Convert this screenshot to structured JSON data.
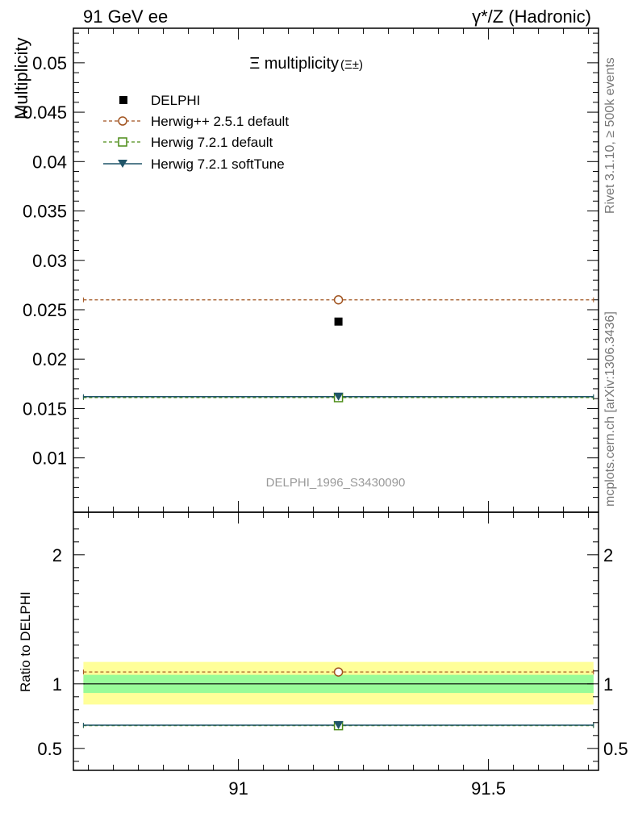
{
  "header": {
    "left": "91 GeV ee",
    "right": "γ*/Z (Hadronic)"
  },
  "side_text": {
    "rivet": "Rivet 3.1.10, ≥ 500k events",
    "mcplots": "mcplots.cern.ch [arXiv:1306.3436]"
  },
  "chart_data": [
    {
      "type": "scatter",
      "title": "Ξ multiplicity",
      "title_suffix": "(Ξ±)",
      "ylabel": "Multiplicity",
      "watermark": "DELPHI_1996_S3430090",
      "xlim": [
        90.67,
        91.72
      ],
      "ylim": [
        0.0045,
        0.0535
      ],
      "yticks": [
        0.01,
        0.015,
        0.02,
        0.025,
        0.03,
        0.035,
        0.04,
        0.045,
        0.05
      ],
      "ytick_labels": [
        "0.01",
        "0.015",
        "0.02",
        "0.025",
        "0.03",
        "0.035",
        "0.04",
        "0.045",
        "0.05"
      ],
      "x_range": [
        90.69,
        91.71
      ],
      "x_center": 91.2,
      "series": [
        {
          "name": "DELPHI",
          "kind": "data",
          "color": "#000000",
          "marker": "square",
          "x": 91.2,
          "y": 0.0238
        },
        {
          "name": "Herwig++ 2.5.1 default",
          "kind": "mc",
          "color": "#a0521d",
          "marker": "circle",
          "dash": true,
          "y": 0.026
        },
        {
          "name": "Herwig 7.2.1 default",
          "kind": "mc",
          "color": "#4c8c16",
          "marker": "open-square",
          "dash": true,
          "y": 0.0161
        },
        {
          "name": "Herwig 7.2.1 softTune",
          "kind": "mc",
          "color": "#1f5468",
          "marker": "triangle-down",
          "dash": false,
          "y": 0.0162
        }
      ]
    },
    {
      "type": "scatter",
      "ylabel": "Ratio to DELPHI",
      "xlim": [
        90.67,
        91.72
      ],
      "ylim": [
        0.33,
        2.33
      ],
      "yticks": [
        0.5,
        1,
        2
      ],
      "ytick_labels": [
        "0.5",
        "1",
        "2"
      ],
      "xticks": [
        91,
        91.5
      ],
      "xtick_labels": [
        "91",
        "91.5"
      ],
      "bands": {
        "inner": [
          0.93,
          1.07
        ],
        "outer": [
          0.84,
          1.17
        ]
      },
      "band_colors": {
        "inner": "#98fb98",
        "outer": "#ffff99"
      },
      "series": [
        {
          "name": "Herwig++ 2.5.1 default",
          "color": "#a0521d",
          "marker": "circle",
          "dash": true,
          "y": 1.092
        },
        {
          "name": "Herwig 7.2.1 default",
          "color": "#4c8c16",
          "marker": "open-square",
          "dash": true,
          "y": 0.676
        },
        {
          "name": "Herwig 7.2.1 softTune",
          "color": "#1f5468",
          "marker": "triangle-down",
          "dash": false,
          "y": 0.68
        }
      ]
    }
  ]
}
